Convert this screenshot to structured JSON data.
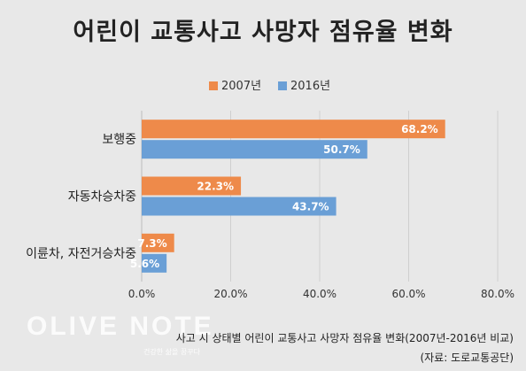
{
  "title": "어린이 교통사고 사망자 점유율 변화",
  "caption": "사고 시 상태별 어린이 교통사고 사망자 점유율 변화(2007년-2016년 비교)",
  "source": "(자료: 도로교통공단)",
  "watermark": {
    "brand": "OLIVE NOTE",
    "tagline": "건강한 삶을 꿈꾸다"
  },
  "colors": {
    "series_2007": "#ee8a4a",
    "series_2016": "#6a9fd6"
  },
  "chart_data": {
    "type": "bar",
    "orientation": "horizontal",
    "categories": [
      "보행중",
      "자동차승차중",
      "이륜차, 자전거승차중"
    ],
    "series": [
      {
        "name": "2007년",
        "values": [
          68.2,
          22.3,
          7.3
        ],
        "labels": [
          "68.2%",
          "22.3%",
          "7.3%"
        ]
      },
      {
        "name": "2016년",
        "values": [
          50.7,
          43.7,
          5.6
        ],
        "labels": [
          "50.7%",
          "43.7%",
          "5.6%"
        ]
      }
    ],
    "xlim": [
      0,
      80
    ],
    "ticks": [
      0,
      20,
      40,
      60,
      80
    ],
    "tick_labels": [
      "0.0%",
      "20.0%",
      "40.0%",
      "60.0%",
      "80.0%"
    ],
    "grid": true,
    "legend": "top"
  }
}
